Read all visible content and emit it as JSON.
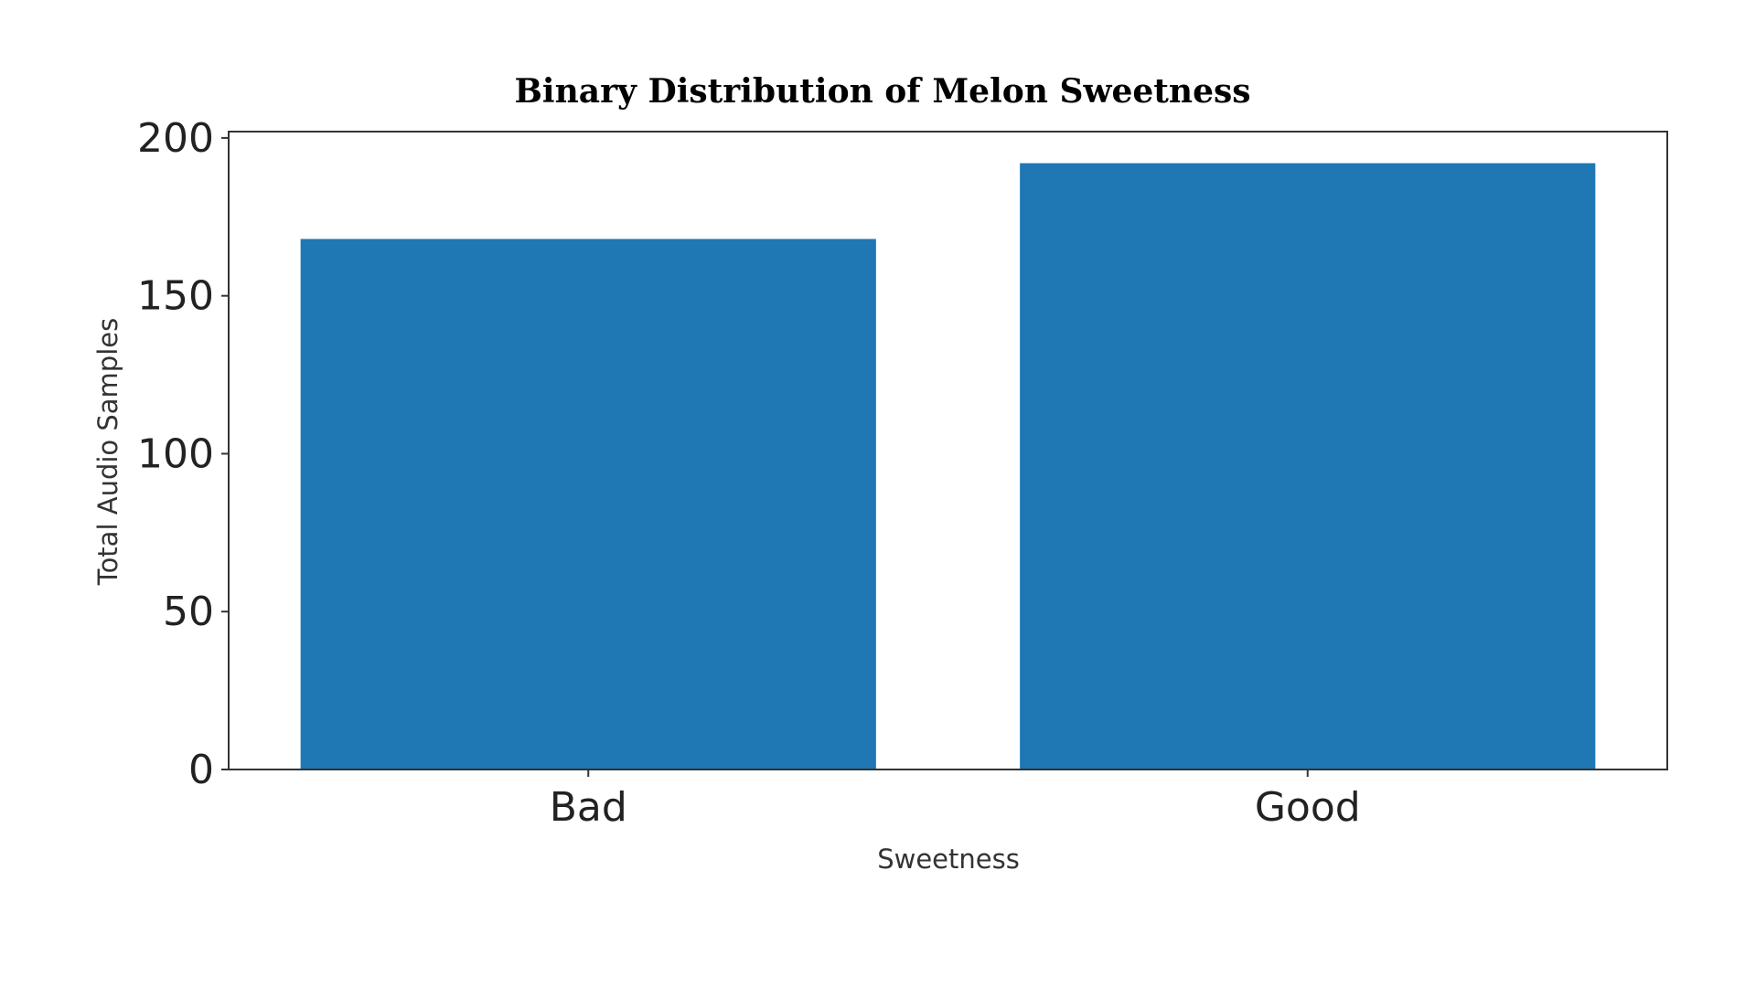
{
  "chart_data": {
    "type": "bar",
    "title": "Binary Distribution of Melon Sweetness",
    "xlabel": "Sweetness",
    "ylabel": "Total Audio Samples",
    "categories": [
      "Bad",
      "Good"
    ],
    "values": [
      168,
      192
    ],
    "ylim": [
      0,
      202
    ],
    "yticks": [
      0,
      50,
      100,
      150,
      200
    ],
    "bar_color": "#1f77b4",
    "grid": false,
    "legend": "none"
  }
}
